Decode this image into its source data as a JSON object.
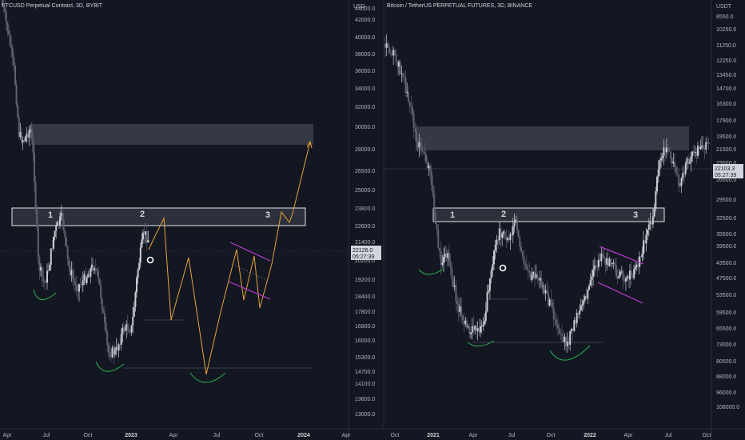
{
  "chart_data": [
    {
      "type": "candlestick",
      "title": "BTCUSD Perpetual Contract, 3D, BYBIT",
      "price_axis_label": "USD",
      "y_tick_labels": [
        "44000.0",
        "42000.0",
        "40000.0",
        "38000.0",
        "36000.0",
        "34000.0",
        "32000.0",
        "30000.0",
        "28000.0",
        "26500.0",
        "25000.0",
        "23800.0",
        "22600.0",
        "21400.0",
        "20200.0",
        "19200.0",
        "18400.0",
        "17800.0",
        "16800.0",
        "16000.0",
        "15300.0",
        "14700.0",
        "14100.0",
        "13600.0",
        "13000.0"
      ],
      "x_tick_labels": [
        "Apr",
        "Jul",
        "Oct",
        "2023",
        "Apr",
        "Jul",
        "Oct",
        "2024",
        "Apr"
      ],
      "last_price": "22126.0",
      "countdown": "05:27:39",
      "zone_labels": [
        "1",
        "2",
        "3"
      ],
      "annotations": [
        "supply zone 30000–32000",
        "resistance zone ~23500–25000",
        "projected path to ~30500"
      ]
    },
    {
      "type": "candlestick",
      "title": "Bitcoin / TetherUS PERPETUAL FUTURES, 3D, BINANCE",
      "price_axis_label": "USDT",
      "y_tick_labels": [
        "8550.0",
        "10250.0",
        "11250.0",
        "12250.0",
        "13450.0",
        "14700.0",
        "16300.0",
        "17900.0",
        "19500.0",
        "21500.0",
        "23500.0",
        "26500.0",
        "29500.0",
        "32500.0",
        "35500.0",
        "39500.0",
        "43500.0",
        "47500.0",
        "53500.0",
        "59500.0",
        "65500.0",
        "73000.0",
        "80500.0",
        "88000.0",
        "96000.0",
        "108000.0"
      ],
      "x_tick_labels": [
        "Oct",
        "2021",
        "Apr",
        "Jul",
        "Oct",
        "2022",
        "Apr",
        "Jul",
        "Oct"
      ],
      "last_price": "22103.3",
      "countdown": "05:27:39",
      "zone_labels": [
        "1",
        "2",
        "3"
      ],
      "scale": "inverted-log"
    }
  ],
  "colors": {
    "background": "#131722",
    "candle_up": "#c8cbd2",
    "candle_down": "#5d6170",
    "zone_fill": "#3a3d48",
    "resistance_box": "#e0e3eb",
    "projection": "#e8a33a",
    "channel": "#c23bd8",
    "arc": "#2eae4f"
  }
}
